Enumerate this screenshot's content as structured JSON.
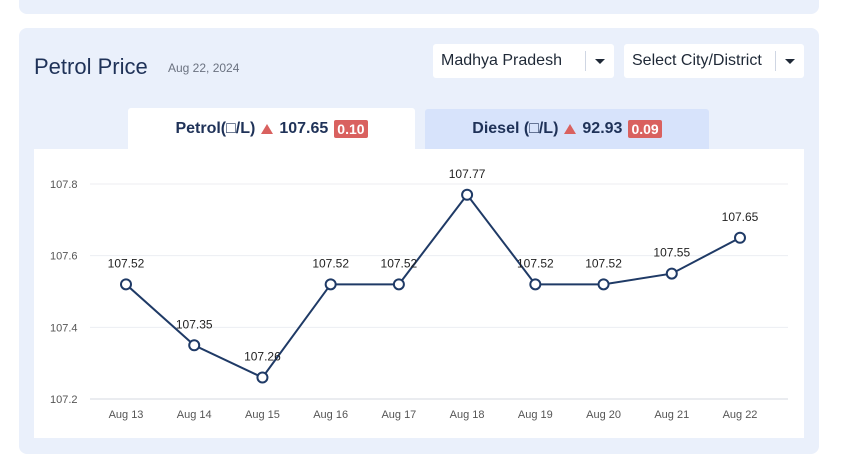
{
  "header": {
    "title": "Petrol Price",
    "date": "Aug 22, 2024"
  },
  "filters": {
    "state": "Madhya Pradesh",
    "city": "Select City/District"
  },
  "tabs": {
    "petrol": {
      "label": "Petrol(□/L)",
      "price": "107.65",
      "change": "0.10"
    },
    "diesel": {
      "label": "Diesel (□/L)",
      "price": "92.93",
      "change": "0.09"
    }
  },
  "colors": {
    "line": "#1f3a66",
    "badge": "#d9615f",
    "panel": "#eaf0fb",
    "active_tab": "#ffffff",
    "inactive_tab": "#d7e3fb"
  },
  "chart_data": {
    "type": "line",
    "categories": [
      "Aug 13",
      "Aug 14",
      "Aug 15",
      "Aug 16",
      "Aug 17",
      "Aug 18",
      "Aug 19",
      "Aug 20",
      "Aug 21",
      "Aug 22"
    ],
    "values": [
      107.52,
      107.35,
      107.26,
      107.52,
      107.52,
      107.77,
      107.52,
      107.52,
      107.55,
      107.65
    ],
    "data_labels": [
      "107.52",
      "107.35",
      "107.26",
      "107.52",
      "107.52",
      "107.77",
      "107.52",
      "107.52",
      "107.55",
      "107.65"
    ],
    "y_ticks": [
      "107.2",
      "107.4",
      "107.6",
      "107.8"
    ],
    "ylim": [
      107.2,
      107.8
    ],
    "grid": true,
    "title": "",
    "xlabel": "",
    "ylabel": ""
  }
}
